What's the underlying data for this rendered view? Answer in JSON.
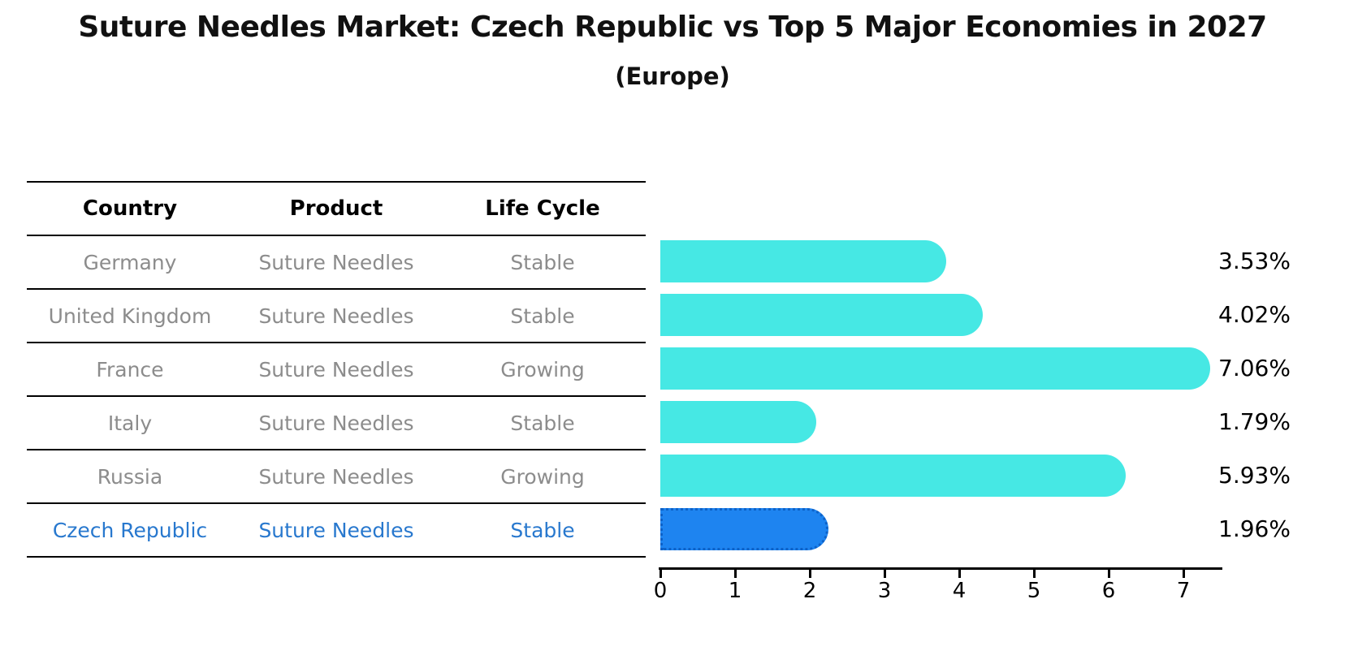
{
  "title": "Suture Needles Market: Czech Republic vs Top 5 Major Economies in 2027",
  "subtitle": "(Europe)",
  "table": {
    "headers": [
      "Country",
      "Product",
      "Life Cycle"
    ],
    "rows": [
      {
        "country": "Germany",
        "product": "Suture Needles",
        "life_cycle": "Stable",
        "highlight": false
      },
      {
        "country": "United Kingdom",
        "product": "Suture Needles",
        "life_cycle": "Stable",
        "highlight": false
      },
      {
        "country": "France",
        "product": "Suture Needles",
        "life_cycle": "Growing",
        "highlight": false
      },
      {
        "country": "Italy",
        "product": "Suture Needles",
        "life_cycle": "Stable",
        "highlight": false
      },
      {
        "country": "Russia",
        "product": "Suture Needles",
        "life_cycle": "Growing",
        "highlight": false
      },
      {
        "country": "Czech Republic",
        "product": "Suture Needles",
        "life_cycle": "Stable",
        "highlight": true
      }
    ]
  },
  "chart_data": {
    "type": "bar",
    "orientation": "horizontal",
    "title": "Suture Needles Market: Czech Republic vs Top 5 Major Economies in 2027",
    "subtitle": "(Europe)",
    "categories": [
      "Germany",
      "United Kingdom",
      "France",
      "Italy",
      "Russia",
      "Czech Republic"
    ],
    "values": [
      3.53,
      4.02,
      7.06,
      1.79,
      5.93,
      1.96
    ],
    "value_labels": [
      "3.53%",
      "4.02%",
      "7.06%",
      "1.79%",
      "5.93%",
      "1.96%"
    ],
    "x_ticks": [
      "0",
      "1",
      "2",
      "3",
      "4",
      "5",
      "6",
      "7"
    ],
    "xlim": [
      0,
      7.5
    ],
    "grid": false,
    "legend": false,
    "bar_color": "#46E8E4",
    "highlight_bar_color": "#1E84F0",
    "highlight_border_color": "#0E62C8",
    "highlight_text_color": "#2878CE",
    "highlight_index": 5
  }
}
